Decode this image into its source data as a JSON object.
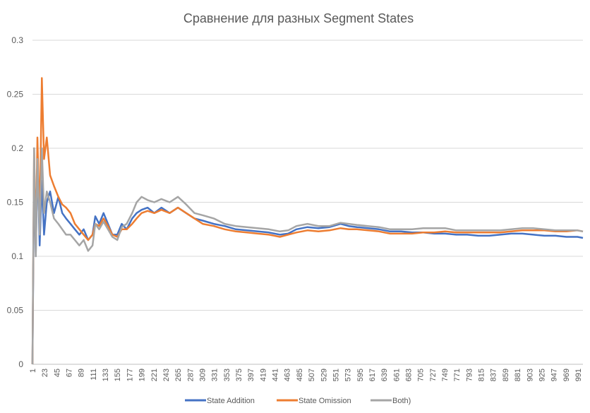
{
  "chart_data": {
    "type": "line",
    "title": "Сравнение для разных Segment States",
    "xlabel": "",
    "ylabel": "",
    "ylim": [
      0,
      0.3
    ],
    "yticks": [
      "0",
      "0.05",
      "0.1",
      "0.15",
      "0.2",
      "0.25",
      "0.3"
    ],
    "xlim": [
      1,
      1000
    ],
    "xticks": [
      "1",
      "23",
      "45",
      "67",
      "89",
      "111",
      "133",
      "155",
      "177",
      "199",
      "221",
      "243",
      "265",
      "287",
      "309",
      "331",
      "353",
      "375",
      "397",
      "419",
      "441",
      "463",
      "485",
      "507",
      "529",
      "551",
      "573",
      "595",
      "617",
      "639",
      "661",
      "683",
      "705",
      "727",
      "749",
      "771",
      "793",
      "815",
      "837",
      "859",
      "881",
      "903",
      "925",
      "947",
      "969",
      "991"
    ],
    "grid": "horizontal",
    "legend": "bottom",
    "series": [
      {
        "name": "State Addition",
        "color": "#4472C4",
        "x": [
          1,
          4,
          7,
          10,
          14,
          18,
          22,
          27,
          33,
          40,
          48,
          55,
          62,
          70,
          78,
          86,
          94,
          102,
          110,
          115,
          122,
          130,
          138,
          146,
          155,
          163,
          172,
          182,
          190,
          199,
          210,
          222,
          235,
          250,
          265,
          280,
          295,
          310,
          330,
          350,
          370,
          390,
          410,
          430,
          450,
          465,
          480,
          500,
          520,
          540,
          560,
          575,
          590,
          610,
          630,
          650,
          670,
          690,
          710,
          730,
          750,
          770,
          790,
          810,
          830,
          850,
          870,
          890,
          910,
          930,
          950,
          970,
          990,
          1000
        ],
        "y": [
          0.0,
          0.18,
          0.1,
          0.19,
          0.11,
          0.17,
          0.12,
          0.15,
          0.16,
          0.14,
          0.155,
          0.14,
          0.135,
          0.13,
          0.125,
          0.12,
          0.125,
          0.115,
          0.12,
          0.137,
          0.13,
          0.14,
          0.13,
          0.12,
          0.12,
          0.13,
          0.125,
          0.135,
          0.14,
          0.143,
          0.145,
          0.14,
          0.145,
          0.14,
          0.145,
          0.14,
          0.135,
          0.133,
          0.13,
          0.128,
          0.125,
          0.124,
          0.123,
          0.122,
          0.12,
          0.121,
          0.125,
          0.127,
          0.126,
          0.127,
          0.13,
          0.128,
          0.127,
          0.126,
          0.125,
          0.123,
          0.123,
          0.122,
          0.122,
          0.121,
          0.121,
          0.12,
          0.12,
          0.119,
          0.119,
          0.12,
          0.121,
          0.121,
          0.12,
          0.119,
          0.119,
          0.118,
          0.118,
          0.117
        ]
      },
      {
        "name": "State Omission",
        "color": "#ED7D31",
        "x": [
          1,
          4,
          7,
          10,
          14,
          18,
          22,
          27,
          33,
          40,
          48,
          55,
          62,
          70,
          78,
          86,
          94,
          102,
          110,
          115,
          122,
          130,
          138,
          146,
          155,
          163,
          172,
          182,
          190,
          199,
          210,
          222,
          235,
          250,
          265,
          280,
          295,
          310,
          330,
          350,
          370,
          390,
          410,
          430,
          450,
          465,
          480,
          500,
          520,
          540,
          560,
          575,
          590,
          610,
          630,
          650,
          670,
          690,
          710,
          730,
          750,
          770,
          790,
          810,
          830,
          850,
          870,
          890,
          910,
          930,
          950,
          970,
          990,
          1000
        ],
        "y": [
          0.0,
          0.2,
          0.11,
          0.21,
          0.13,
          0.265,
          0.19,
          0.21,
          0.175,
          0.165,
          0.155,
          0.148,
          0.145,
          0.14,
          0.13,
          0.125,
          0.12,
          0.115,
          0.12,
          0.13,
          0.128,
          0.135,
          0.128,
          0.12,
          0.118,
          0.125,
          0.125,
          0.13,
          0.135,
          0.14,
          0.142,
          0.14,
          0.143,
          0.14,
          0.145,
          0.14,
          0.135,
          0.13,
          0.128,
          0.125,
          0.123,
          0.122,
          0.121,
          0.12,
          0.118,
          0.12,
          0.122,
          0.124,
          0.123,
          0.124,
          0.126,
          0.125,
          0.125,
          0.124,
          0.123,
          0.121,
          0.121,
          0.121,
          0.122,
          0.122,
          0.123,
          0.122,
          0.122,
          0.122,
          0.122,
          0.122,
          0.123,
          0.124,
          0.124,
          0.124,
          0.123,
          0.123,
          0.124,
          0.123
        ]
      },
      {
        "name": "Both)",
        "color": "#A5A5A5",
        "x": [
          1,
          4,
          7,
          10,
          14,
          18,
          22,
          27,
          33,
          40,
          48,
          55,
          62,
          70,
          78,
          86,
          94,
          102,
          110,
          115,
          122,
          130,
          138,
          146,
          155,
          163,
          172,
          182,
          190,
          199,
          210,
          222,
          235,
          250,
          265,
          280,
          295,
          310,
          330,
          350,
          370,
          390,
          410,
          430,
          450,
          465,
          480,
          500,
          520,
          540,
          560,
          575,
          590,
          610,
          630,
          650,
          670,
          690,
          710,
          730,
          750,
          770,
          790,
          810,
          830,
          850,
          870,
          890,
          910,
          930,
          950,
          970,
          990,
          1000
        ],
        "y": [
          0.0,
          0.2,
          0.1,
          0.19,
          0.12,
          0.2,
          0.14,
          0.16,
          0.15,
          0.135,
          0.13,
          0.125,
          0.12,
          0.12,
          0.115,
          0.11,
          0.115,
          0.105,
          0.11,
          0.13,
          0.125,
          0.132,
          0.125,
          0.118,
          0.115,
          0.127,
          0.13,
          0.14,
          0.15,
          0.155,
          0.152,
          0.15,
          0.153,
          0.15,
          0.155,
          0.148,
          0.14,
          0.138,
          0.135,
          0.13,
          0.128,
          0.127,
          0.126,
          0.125,
          0.123,
          0.124,
          0.128,
          0.13,
          0.128,
          0.128,
          0.131,
          0.13,
          0.129,
          0.128,
          0.127,
          0.125,
          0.125,
          0.125,
          0.126,
          0.126,
          0.126,
          0.124,
          0.124,
          0.124,
          0.124,
          0.124,
          0.125,
          0.126,
          0.126,
          0.125,
          0.124,
          0.124,
          0.124,
          0.123
        ]
      }
    ]
  }
}
